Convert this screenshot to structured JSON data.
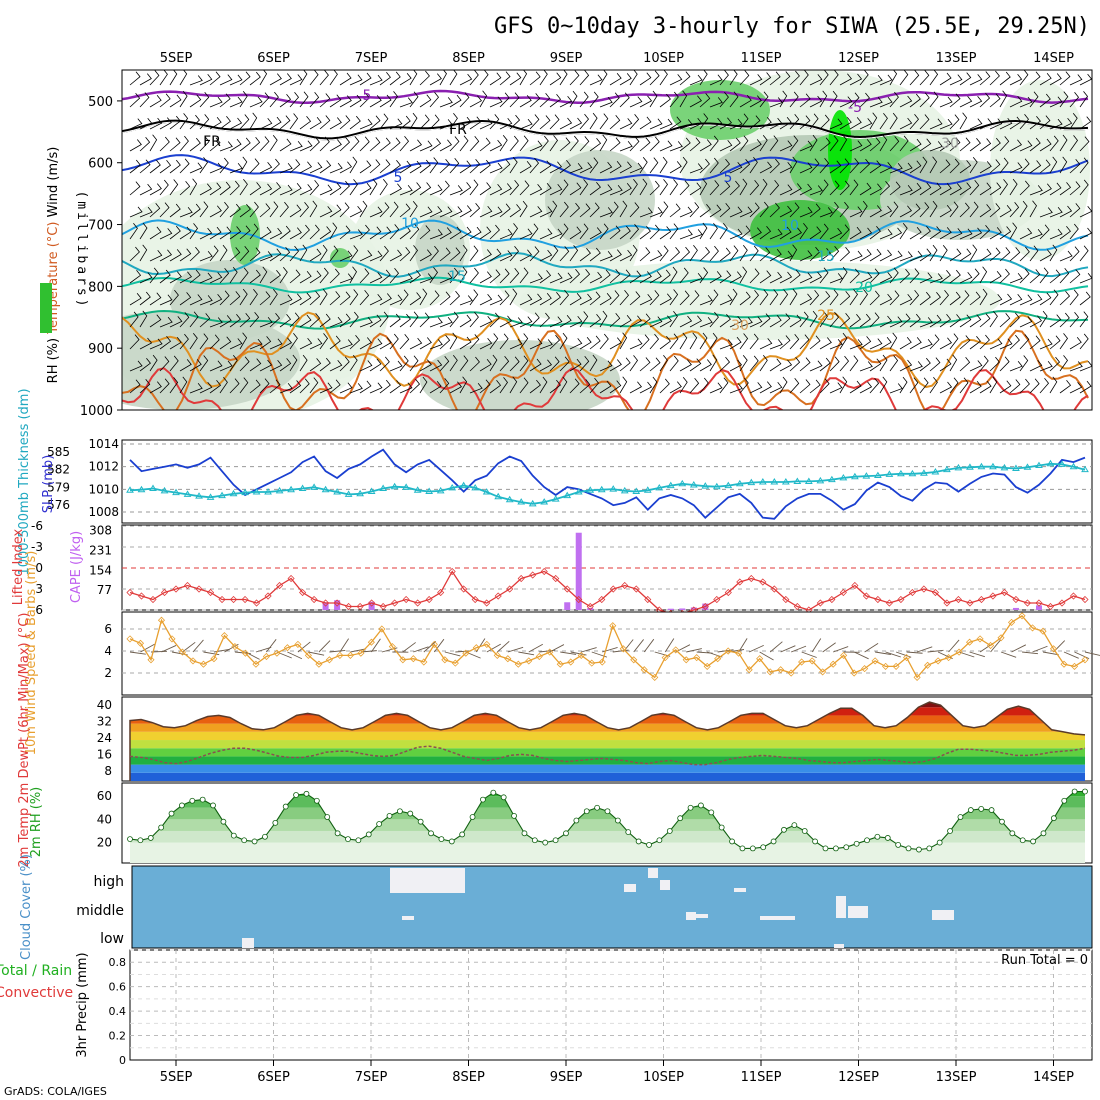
{
  "title": "GFS 0~10day 3-hourly for SIWA (25.5E, 29.25N)",
  "credit": "GrADS: COLA/IGES",
  "dates": [
    "5SEP",
    "6SEP",
    "7SEP",
    "8SEP",
    "9SEP",
    "10SEP",
    "11SEP",
    "12SEP",
    "13SEP",
    "14SEP"
  ],
  "chart_data": [
    {
      "type": "area",
      "panel": "upper_air",
      "ylabel_parts": [
        "RH (%)",
        "Temperature (°C)",
        "Wind (m/s)"
      ],
      "ylabel_unit": "(millibars)",
      "y_ticks": [
        500,
        600,
        700,
        800,
        900,
        1000
      ],
      "ylim": [
        1000,
        450
      ],
      "contour_labels": [
        "5",
        "FR",
        "FR",
        "5",
        "5",
        "10",
        "10",
        "15",
        "15",
        "20",
        "25",
        "-5",
        "30",
        "30"
      ]
    },
    {
      "type": "line",
      "panel": "slp_thickness",
      "ylabel_left": "1000-500mb Thickness (dm)",
      "ylabel_right": "SLP (mb)",
      "thickness_ticks": [
        576,
        579,
        582,
        585
      ],
      "slp_ticks": [
        1008,
        1010,
        1012,
        1014
      ],
      "series": [
        {
          "name": "SLP (mb)",
          "color": "#1a3fd0",
          "values": [
            1012.6,
            1011.6,
            1011.8,
            1012,
            1012.2,
            1011.9,
            1012.2,
            1012.8,
            1011.6,
            1010.4,
            1009.5,
            1010,
            1010.5,
            1011,
            1011.5,
            1012.4,
            1012.9,
            1011.6,
            1011,
            1011.8,
            1012.2,
            1012.9,
            1013.5,
            1012.2,
            1011.5,
            1012.2,
            1012.6,
            1011.7,
            1010.8,
            1009.8,
            1010.8,
            1011.2,
            1012.3,
            1012.9,
            1012.5,
            1011.2,
            1010.2,
            1009.5,
            1010.2,
            1010,
            1009.6,
            1009.2,
            1008.6,
            1008.8,
            1009.3,
            1008.2,
            1009.2,
            1009.5,
            1009.2,
            1008.6,
            1007.5,
            1008.4,
            1009.3,
            1009.6,
            1008.8,
            1007.5,
            1007.4,
            1008.5,
            1009.2,
            1009.6,
            1009.6,
            1009,
            1008.2,
            1008.7,
            1009.9,
            1010.6,
            1010.2,
            1009.4,
            1009,
            1010,
            1010.6,
            1010.5,
            1009.8,
            1010.5,
            1011.1,
            1011.4,
            1011.3,
            1010.2,
            1009.7,
            1010.4,
            1011.4,
            1012.6,
            1012.4,
            1012.8
          ]
        },
        {
          "name": "1000-500mb Thickness (dm)",
          "color": "#20b8c8",
          "values": [
            578.5,
            578.6,
            578.8,
            578.4,
            578.1,
            577.8,
            577.5,
            577.3,
            577.6,
            577.9,
            578.1,
            578.2,
            578.2,
            578.4,
            578.6,
            578.8,
            579,
            578.6,
            578.2,
            577.8,
            577.9,
            578.3,
            578.8,
            579.1,
            579,
            578.5,
            578.3,
            578.4,
            578.9,
            579.3,
            578.9,
            578.2,
            577.4,
            576.9,
            576.5,
            576.2,
            576.5,
            577,
            577.6,
            578.2,
            578.5,
            578.6,
            578.7,
            578.4,
            578.3,
            578.5,
            578.9,
            579.3,
            579.6,
            579.4,
            579.2,
            579.1,
            579.3,
            579.6,
            579.8,
            579.9,
            579.9,
            579.9,
            580,
            580,
            580.1,
            580.3,
            580.6,
            580.8,
            580.9,
            581,
            581.2,
            581.3,
            581.3,
            581.4,
            581.6,
            582,
            582.3,
            582.4,
            582.5,
            582.5,
            582.3,
            582.2,
            582.4,
            582.7,
            583,
            582.9,
            582.5,
            582
          ]
        }
      ]
    },
    {
      "type": "line",
      "panel": "cape_li",
      "ylabel_left": "Lifted Index",
      "ylabel_right": "CAPE (J/kg)",
      "li_ticks": [
        "-6",
        "-3",
        "0",
        "3",
        "6"
      ],
      "cape_ticks": [
        "308",
        "231",
        "154",
        "77"
      ],
      "series": [
        {
          "name": "Lifted Index",
          "color": "#e03a3a",
          "values": [
            3.5,
            4,
            4.5,
            3.5,
            3,
            2.5,
            3,
            3.5,
            4.5,
            4.5,
            4.5,
            5,
            4,
            2.5,
            1.5,
            3.5,
            4.5,
            5,
            5,
            5.5,
            5.5,
            5,
            5.5,
            5,
            4.5,
            5,
            4.5,
            3.5,
            0.5,
            3,
            4.5,
            5,
            4,
            3,
            1.5,
            1,
            0.5,
            1.5,
            3,
            4.5,
            5.5,
            4.5,
            3,
            2.5,
            3,
            4.5,
            6,
            6.5,
            6.5,
            6,
            5.5,
            4.5,
            3.5,
            2,
            1.5,
            2,
            3,
            4.5,
            5.5,
            6,
            5,
            4.5,
            3.5,
            2.5,
            4,
            4.5,
            5,
            4.5,
            3.5,
            3,
            3.5,
            5,
            4.5,
            5,
            4.5,
            4,
            3.5,
            4.5,
            5,
            5,
            5.5,
            5,
            4,
            4.5
          ]
        },
        {
          "name": "CAPE (J/kg)",
          "color": "#c070f0",
          "bars": [
            {
              "index": 17,
              "value": 30
            },
            {
              "index": 18,
              "value": 38
            },
            {
              "index": 21,
              "value": 32
            },
            {
              "index": 38,
              "value": 30
            },
            {
              "index": 39,
              "value": 300
            },
            {
              "index": 40,
              "value": 8
            },
            {
              "index": 47,
              "value": 5
            },
            {
              "index": 48,
              "value": 6
            },
            {
              "index": 49,
              "value": 10
            },
            {
              "index": 50,
              "value": 25
            },
            {
              "index": 77,
              "value": 8
            },
            {
              "index": 79,
              "value": 18
            }
          ]
        }
      ]
    },
    {
      "type": "line",
      "panel": "wind10m",
      "ylabel": "10m Wind Speed & Barbs (m/s)",
      "y_ticks": [
        2,
        4,
        6
      ],
      "series": [
        {
          "name": "10m Wind Speed",
          "color": "#e8a030",
          "values": [
            5.1,
            4.7,
            3.2,
            6.8,
            5.1,
            3.9,
            3.1,
            2.8,
            3.3,
            5.4,
            4.4,
            3.8,
            2.8,
            3.5,
            3.8,
            4.3,
            4.6,
            3.6,
            2.8,
            3.2,
            3.6,
            3.6,
            3.8,
            4.8,
            6,
            4.4,
            3.2,
            3.3,
            3,
            4.6,
            3.2,
            2.9,
            3.8,
            4.3,
            4.6,
            3.6,
            3.3,
            2.8,
            3.1,
            3.5,
            3.9,
            2.8,
            3,
            3.6,
            2.9,
            3,
            6.3,
            4.2,
            3.2,
            2.3,
            1.6,
            3.4,
            4.1,
            3.2,
            3.4,
            2.6,
            3.3,
            4,
            3.8,
            2.3,
            3.3,
            2.1,
            2.3,
            2,
            3,
            3.1,
            2.1,
            2.8,
            3.6,
            2,
            2.4,
            3.1,
            2.6,
            2.6,
            3.4,
            1.6,
            2.7,
            3.1,
            3.4,
            3.9,
            4.8,
            5.1,
            4.5,
            5.2,
            6.6,
            7.2,
            6.1,
            5.8,
            4.2,
            2.8,
            2.6,
            3.2
          ]
        }
      ]
    },
    {
      "type": "area",
      "panel": "temp2m",
      "ylabel": "2m Temp 2m DewPt (6hr Min/Max) (°C)",
      "y_ticks": [
        8,
        16,
        24,
        32,
        40
      ],
      "series": [
        {
          "name": "2m Temp",
          "color": "#5a3a2a",
          "values": [
            32.5,
            33,
            31.5,
            29.5,
            29,
            30,
            32.5,
            34.5,
            35,
            34,
            31,
            28.5,
            28,
            29,
            32,
            35,
            36,
            35,
            32,
            29,
            28,
            29,
            32,
            35,
            36,
            35,
            32,
            29,
            28,
            29,
            32,
            35,
            36,
            35,
            32,
            29,
            28,
            29,
            32,
            35,
            36,
            35,
            32,
            29,
            28,
            29,
            32,
            35,
            36,
            35,
            32,
            29,
            28,
            29,
            32,
            35,
            36,
            36,
            33,
            30,
            29,
            30,
            33,
            36,
            38.5,
            38.5,
            35,
            30,
            29,
            30,
            34,
            39,
            41.5,
            40,
            35,
            30,
            29,
            30,
            34,
            38,
            39.5,
            38,
            33,
            28,
            27,
            26,
            25.5
          ]
        },
        {
          "name": "2m DewPt",
          "color": "#8a5050",
          "values": [
            15,
            14.5,
            13.5,
            12,
            11.5,
            12.5,
            14.5,
            16.5,
            18,
            19,
            19,
            18,
            16.5,
            15,
            14.5,
            14.5,
            15.5,
            17,
            17.5,
            17.5,
            16.5,
            15.5,
            15,
            15.5,
            17.5,
            19.5,
            20,
            19,
            17,
            15,
            14,
            13,
            14,
            15.5,
            16,
            15.5,
            14,
            13,
            12.5,
            13,
            13.5,
            14,
            13.5,
            13,
            12,
            11.5,
            12.5,
            13,
            12,
            11,
            11,
            12,
            13.5,
            14.5,
            15,
            15.5,
            15,
            14.5,
            14,
            13,
            12.5,
            12,
            12,
            12.5,
            13,
            13.5,
            13,
            12.5,
            12,
            12.5,
            14,
            16.5,
            18.5,
            18.5,
            18,
            17.5,
            16.5,
            15.5,
            15.5,
            16,
            17,
            17.5,
            18,
            19
          ]
        }
      ]
    },
    {
      "type": "area",
      "panel": "rh2m",
      "ylabel": "2m RH (%)",
      "y_ticks": [
        20,
        40,
        60
      ],
      "series": [
        {
          "name": "2m RH",
          "color": "#20a020",
          "values": [
            23,
            22,
            24,
            33,
            45,
            52,
            56,
            57,
            52,
            38,
            26,
            22,
            21,
            25,
            37,
            51,
            61,
            62,
            56,
            42,
            28,
            23,
            22,
            27,
            36,
            43,
            47,
            45,
            38,
            28,
            23,
            21,
            27,
            42,
            57,
            63,
            59,
            43,
            28,
            22,
            20,
            22,
            28,
            39,
            47,
            50,
            47,
            39,
            29,
            21,
            18,
            22,
            30,
            41,
            50,
            52,
            46,
            33,
            21,
            15,
            15,
            16,
            21,
            31,
            35,
            30,
            21,
            15,
            15,
            16,
            19,
            22,
            25,
            24,
            18,
            15,
            14,
            15,
            20,
            30,
            42,
            48,
            49,
            48,
            38,
            28,
            22,
            21,
            28,
            41,
            56,
            64,
            64
          ]
        }
      ]
    },
    {
      "type": "bar",
      "panel": "cloud_cover",
      "ylabel": "Cloud Cover (%)",
      "categories": [
        "high",
        "middle",
        "low"
      ]
    },
    {
      "type": "line",
      "panel": "precip",
      "ylabel_parts": [
        "Total / Rain",
        "Convective"
      ],
      "ylabel_unit": "3hr Precip (mm)",
      "y_ticks": [
        "0",
        "0.2",
        "0.4",
        "0.6",
        "0.8"
      ],
      "ylim": [
        0,
        0.9
      ],
      "run_total_label": "Run Total = 0",
      "series": [
        {
          "name": "3hr Precip",
          "values": [
            0
          ]
        }
      ]
    }
  ]
}
